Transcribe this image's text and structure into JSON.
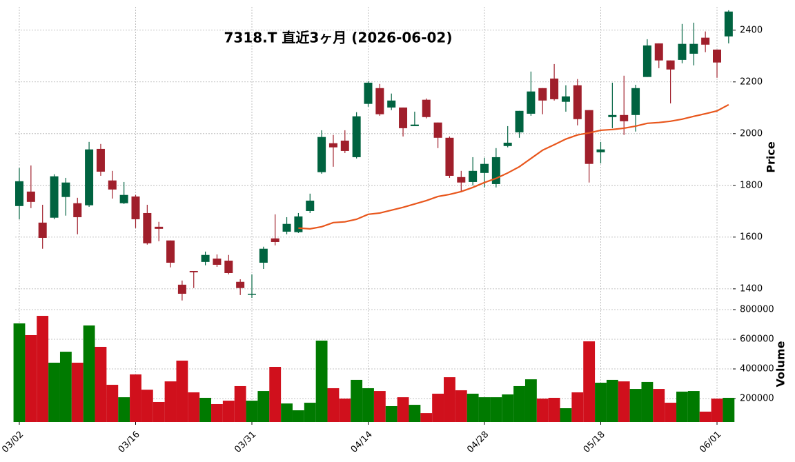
{
  "chart_data": {
    "type": "candlestick",
    "title": "7318.T  直近3ヶ月  (2026-06-02)",
    "ylabel": "Price",
    "categories": [
      "03/02",
      null,
      null,
      null,
      null,
      null,
      null,
      null,
      null,
      null,
      "03/16",
      null,
      null,
      null,
      null,
      null,
      null,
      null,
      null,
      null,
      "03/31",
      null,
      null,
      null,
      null,
      null,
      null,
      null,
      null,
      null,
      "04/14",
      null,
      null,
      null,
      null,
      null,
      null,
      null,
      null,
      null,
      "04/28",
      null,
      null,
      null,
      null,
      null,
      null,
      null,
      null,
      null,
      "05/18",
      null,
      null,
      null,
      null,
      null,
      null,
      null,
      null,
      null,
      "06/01",
      null
    ],
    "open": [
      1720,
      1776,
      1656,
      1675,
      1755,
      1731,
      1723,
      1941,
      1819,
      1731,
      1757,
      1693,
      1640,
      1587,
      1416,
      1469,
      1504,
      1517,
      1509,
      1427,
      1379,
      1501,
      1595,
      1621,
      1619,
      1701,
      1851,
      1963,
      1973,
      1909,
      2115,
      2176,
      2101,
      2101,
      2029,
      2131,
      2043,
      1984,
      1832,
      1813,
      1848,
      1805,
      1952,
      2005,
      2077,
      2176,
      2213,
      2123,
      2187,
      2091,
      1928,
      2064,
      2072,
      2072,
      2219,
      2349,
      2283,
      2285,
      2309,
      2371,
      2325,
      2376
    ],
    "high": [
      1867,
      1877,
      1725,
      1843,
      1829,
      1752,
      1968,
      1960,
      1856,
      1813,
      1763,
      1725,
      1659,
      1587,
      1432,
      1469,
      1544,
      1533,
      1531,
      1437,
      1456,
      1563,
      1688,
      1677,
      1693,
      1768,
      2013,
      1995,
      2013,
      2083,
      2203,
      2192,
      2155,
      2101,
      2085,
      2136,
      2043,
      1989,
      1856,
      1909,
      1907,
      1944,
      2029,
      2088,
      2240,
      2176,
      2269,
      2187,
      2211,
      2091,
      1968,
      2197,
      2224,
      2189,
      2365,
      2349,
      2283,
      2424,
      2429,
      2395,
      2325,
      2477
    ],
    "low": [
      1669,
      1712,
      1555,
      1669,
      1683,
      1611,
      1717,
      1837,
      1749,
      1728,
      1635,
      1571,
      1584,
      1483,
      1355,
      1403,
      1491,
      1485,
      1456,
      1376,
      1365,
      1477,
      1568,
      1611,
      1616,
      1693,
      1845,
      1872,
      1925,
      1904,
      2104,
      2069,
      2091,
      1989,
      2029,
      2059,
      1944,
      1829,
      1773,
      1800,
      1792,
      1792,
      1947,
      1984,
      2069,
      2075,
      2128,
      2085,
      2032,
      1811,
      1885,
      2021,
      1995,
      2008,
      2219,
      2253,
      2117,
      2272,
      2264,
      2315,
      2216,
      2349
    ],
    "close": [
      1816,
      1736,
      1597,
      1835,
      1811,
      1677,
      1939,
      1853,
      1784,
      1763,
      1669,
      1576,
      1632,
      1501,
      1381,
      1464,
      1531,
      1493,
      1461,
      1403,
      1381,
      1555,
      1581,
      1651,
      1680,
      1741,
      1987,
      1947,
      1933,
      2067,
      2197,
      2075,
      2128,
      2021,
      2035,
      2064,
      1984,
      1837,
      1811,
      1856,
      1883,
      1909,
      1965,
      2088,
      2163,
      2128,
      2133,
      2144,
      2056,
      1883,
      1939,
      2072,
      2048,
      2176,
      2341,
      2283,
      2248,
      2347,
      2347,
      2344,
      2275,
      2472
    ],
    "colors": {
      "up": "#006340",
      "down": "#a01f2b"
    },
    "ylim": [
      1325,
      2490
    ],
    "yticks": [
      1400,
      1600,
      1800,
      2000,
      2200,
      2400
    ],
    "grid": true,
    "ma": {
      "color": "#e8561c",
      "values": [
        null,
        null,
        null,
        null,
        null,
        null,
        null,
        null,
        null,
        null,
        null,
        null,
        null,
        null,
        null,
        null,
        null,
        null,
        null,
        null,
        null,
        null,
        null,
        null,
        1635,
        1632,
        1640,
        1656,
        1659,
        1669,
        1688,
        1693,
        1704,
        1715,
        1728,
        1741,
        1757,
        1765,
        1776,
        1792,
        1811,
        1827,
        1848,
        1872,
        1904,
        1936,
        1957,
        1979,
        1995,
        2003,
        2013,
        2016,
        2021,
        2029,
        2040,
        2043,
        2048,
        2056,
        2067,
        2077,
        2088,
        2112
      ]
    },
    "volume": {
      "ylabel": "Volume",
      "colors": {
        "up": "#007a00",
        "down": "#d0101c"
      },
      "ylim": [
        42000,
        800000
      ],
      "yticks": [
        200000,
        400000,
        600000,
        800000
      ],
      "values": [
        707000,
        628000,
        758000,
        442000,
        516000,
        442000,
        693000,
        549000,
        293000,
        209000,
        363000,
        260000,
        177000,
        316000,
        456000,
        242000,
        205000,
        163000,
        186000,
        284000,
        186000,
        251000,
        414000,
        167000,
        121000,
        172000,
        591000,
        270000,
        200000,
        326000,
        270000,
        251000,
        149000,
        209000,
        158000,
        102000,
        233000,
        344000,
        256000,
        233000,
        209000,
        209000,
        228000,
        284000,
        330000,
        200000,
        205000,
        135000,
        242000,
        586000,
        307000,
        326000,
        316000,
        265000,
        312000,
        265000,
        172000,
        247000,
        251000,
        112000,
        200000,
        205000
      ]
    }
  }
}
